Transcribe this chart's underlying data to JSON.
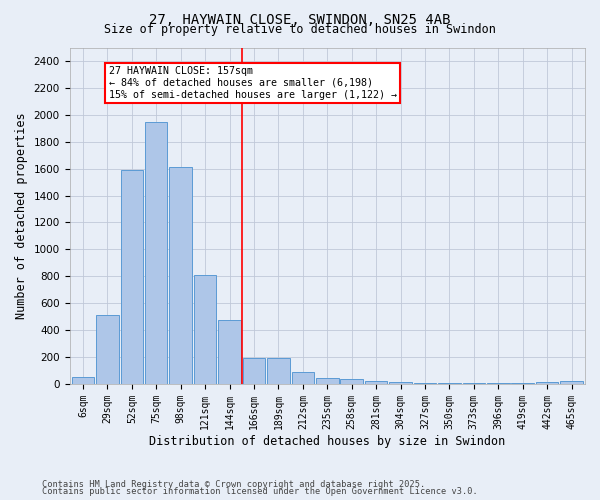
{
  "title1": "27, HAYWAIN CLOSE, SWINDON, SN25 4AB",
  "title2": "Size of property relative to detached houses in Swindon",
  "xlabel": "Distribution of detached houses by size in Swindon",
  "ylabel": "Number of detached properties",
  "annotation_title": "27 HAYWAIN CLOSE: 157sqm",
  "annotation_line1": "← 84% of detached houses are smaller (6,198)",
  "annotation_line2": "15% of semi-detached houses are larger (1,122) →",
  "vline_x_index": 6.5,
  "categories": [
    "6sqm",
    "29sqm",
    "52sqm",
    "75sqm",
    "98sqm",
    "121sqm",
    "144sqm",
    "166sqm",
    "189sqm",
    "212sqm",
    "235sqm",
    "258sqm",
    "281sqm",
    "304sqm",
    "327sqm",
    "350sqm",
    "373sqm",
    "396sqm",
    "419sqm",
    "442sqm",
    "465sqm"
  ],
  "values": [
    55,
    510,
    1590,
    1950,
    1610,
    810,
    475,
    195,
    195,
    90,
    45,
    35,
    25,
    15,
    5,
    5,
    5,
    5,
    5,
    15,
    25
  ],
  "bar_color": "#aec6e8",
  "bar_edge_color": "#5b9bd5",
  "vline_color": "red",
  "annotation_box_edge": "red",
  "annotation_box_face": "white",
  "background_color": "#e8eef7",
  "grid_color": "#c0c8d8",
  "footer1": "Contains HM Land Registry data © Crown copyright and database right 2025.",
  "footer2": "Contains public sector information licensed under the Open Government Licence v3.0.",
  "ylim": [
    0,
    2500
  ],
  "yticks": [
    0,
    200,
    400,
    600,
    800,
    1000,
    1200,
    1400,
    1600,
    1800,
    2000,
    2200,
    2400
  ],
  "fig_width": 6.0,
  "fig_height": 5.0,
  "dpi": 100
}
